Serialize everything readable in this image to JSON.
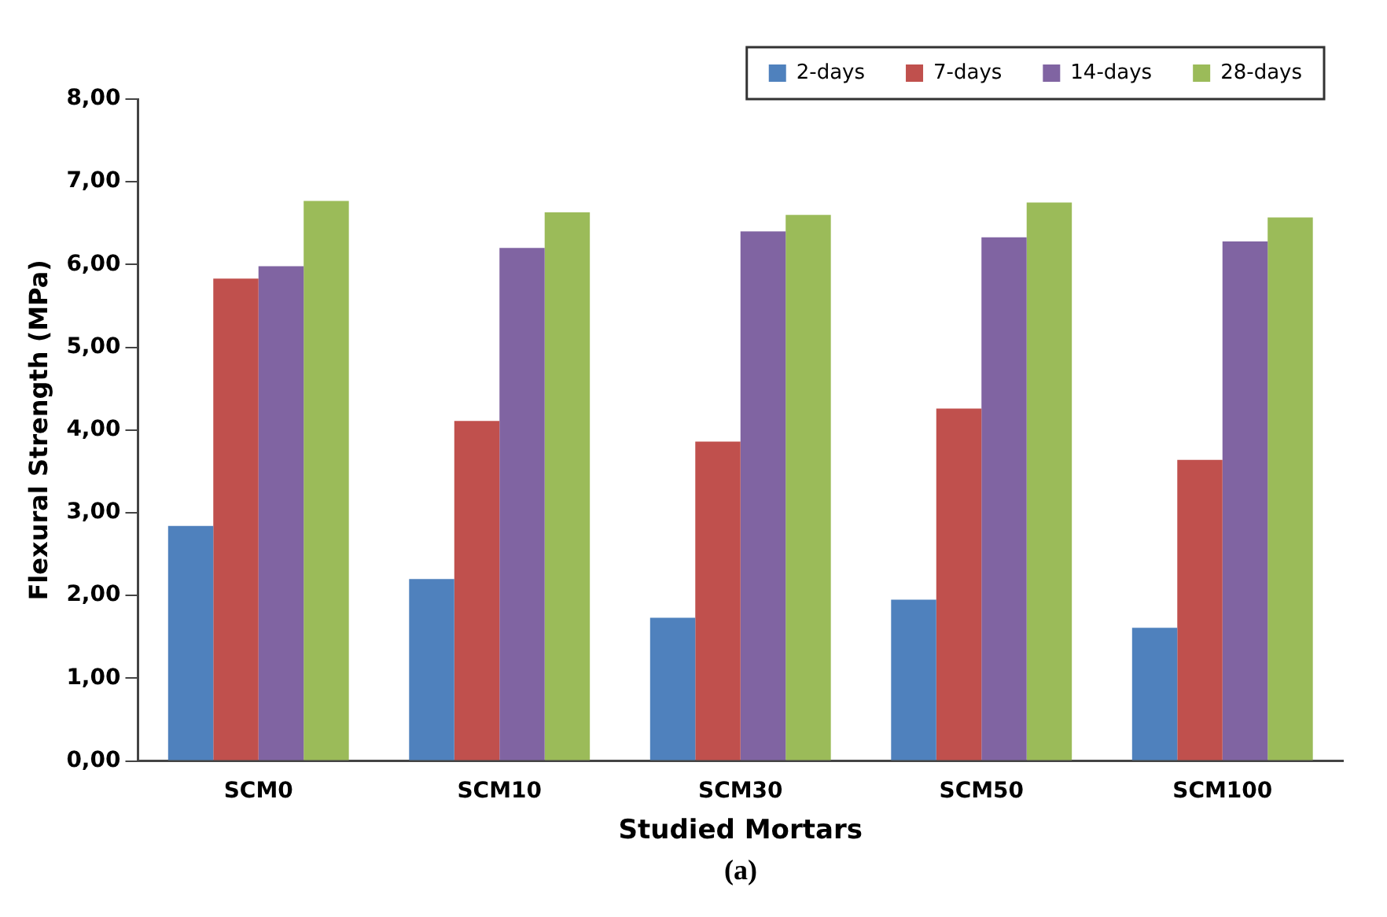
{
  "chart_data": {
    "type": "bar",
    "xlabel": "Studied Mortars",
    "ylabel": "Flexural Strength (MPa)",
    "annotations": [
      "(a)"
    ],
    "categories": [
      "SCM0",
      "SCM10",
      "SCM30",
      "SCM50",
      "SCM100"
    ],
    "series": [
      {
        "name": "2-days",
        "color": "#4f81bd",
        "values": [
          2.84,
          2.2,
          1.73,
          1.95,
          1.61
        ]
      },
      {
        "name": "7-days",
        "color": "#c0504d",
        "values": [
          5.83,
          4.11,
          3.86,
          4.26,
          3.64
        ]
      },
      {
        "name": "14-days",
        "color": "#8064a2",
        "values": [
          5.98,
          6.2,
          6.4,
          6.33,
          6.28
        ]
      },
      {
        "name": "28-days",
        "color": "#9bbb59",
        "values": [
          6.77,
          6.63,
          6.6,
          6.75,
          6.57
        ]
      }
    ],
    "ylim": [
      0,
      8
    ],
    "yticks": [
      {
        "value": 0,
        "label": "0,00"
      },
      {
        "value": 1,
        "label": "1,00"
      },
      {
        "value": 2,
        "label": "2,00"
      },
      {
        "value": 3,
        "label": "3,00"
      },
      {
        "value": 4,
        "label": "4,00"
      },
      {
        "value": 5,
        "label": "5,00"
      },
      {
        "value": 6,
        "label": "6,00"
      },
      {
        "value": 7,
        "label": "7,00"
      },
      {
        "value": 8,
        "label": "8,00"
      }
    ],
    "grid": false,
    "legend": "top right"
  }
}
